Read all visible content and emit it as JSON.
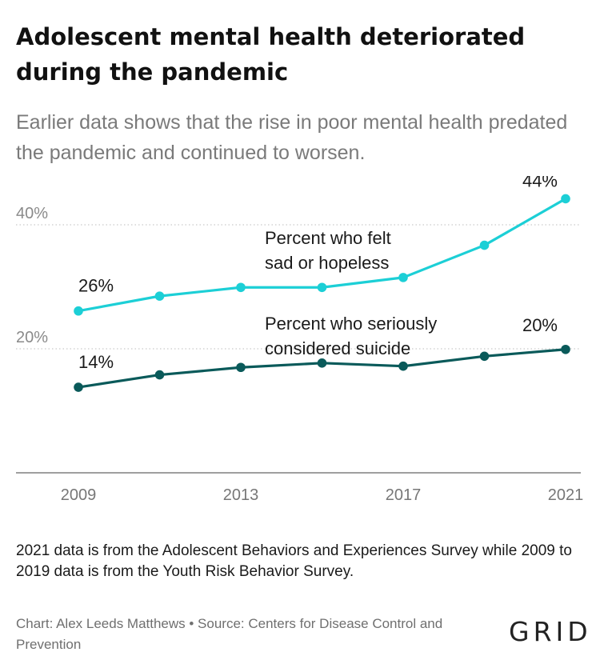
{
  "title": "Adolescent mental health deteriorated during the pandemic",
  "subtitle": "Earlier data shows that the rise in poor mental health predated the pandemic and continued to worsen.",
  "note": "2021 data is from the Adolescent Behaviors and Experiences Survey while 2009 to 2019 data is from the Youth Risk Behavior Survey.",
  "credit": "Chart: Alex Leeds Matthews • Source: Centers for Disease Control and Prevention",
  "logo": "GRID",
  "chart_data": {
    "type": "line",
    "x": [
      2009,
      2011,
      2013,
      2015,
      2017,
      2019,
      2021
    ],
    "x_ticks": [
      {
        "value": 2009,
        "label": "2009"
      },
      {
        "value": 2013,
        "label": "2013"
      },
      {
        "value": 2017,
        "label": "2017"
      },
      {
        "value": 2021,
        "label": "2021"
      }
    ],
    "y_ticks": [
      {
        "value": 20,
        "label": "20%"
      },
      {
        "value": 40,
        "label": "40%"
      }
    ],
    "ylim": [
      0,
      46
    ],
    "grid": "horizontal dotted",
    "series": [
      {
        "name_lines": [
          "Percent who felt",
          "sad or hopeless"
        ],
        "color": "#1ccfd6",
        "values": [
          26.1,
          28.5,
          29.9,
          29.9,
          31.5,
          36.7,
          44.2
        ],
        "start_label": "26%",
        "end_label": "44%"
      },
      {
        "name_lines": [
          "Percent who seriously",
          "considered suicide"
        ],
        "color": "#0a5a5a",
        "values": [
          13.8,
          15.8,
          17.0,
          17.7,
          17.2,
          18.8,
          19.9
        ],
        "start_label": "14%",
        "end_label": "20%"
      }
    ]
  }
}
